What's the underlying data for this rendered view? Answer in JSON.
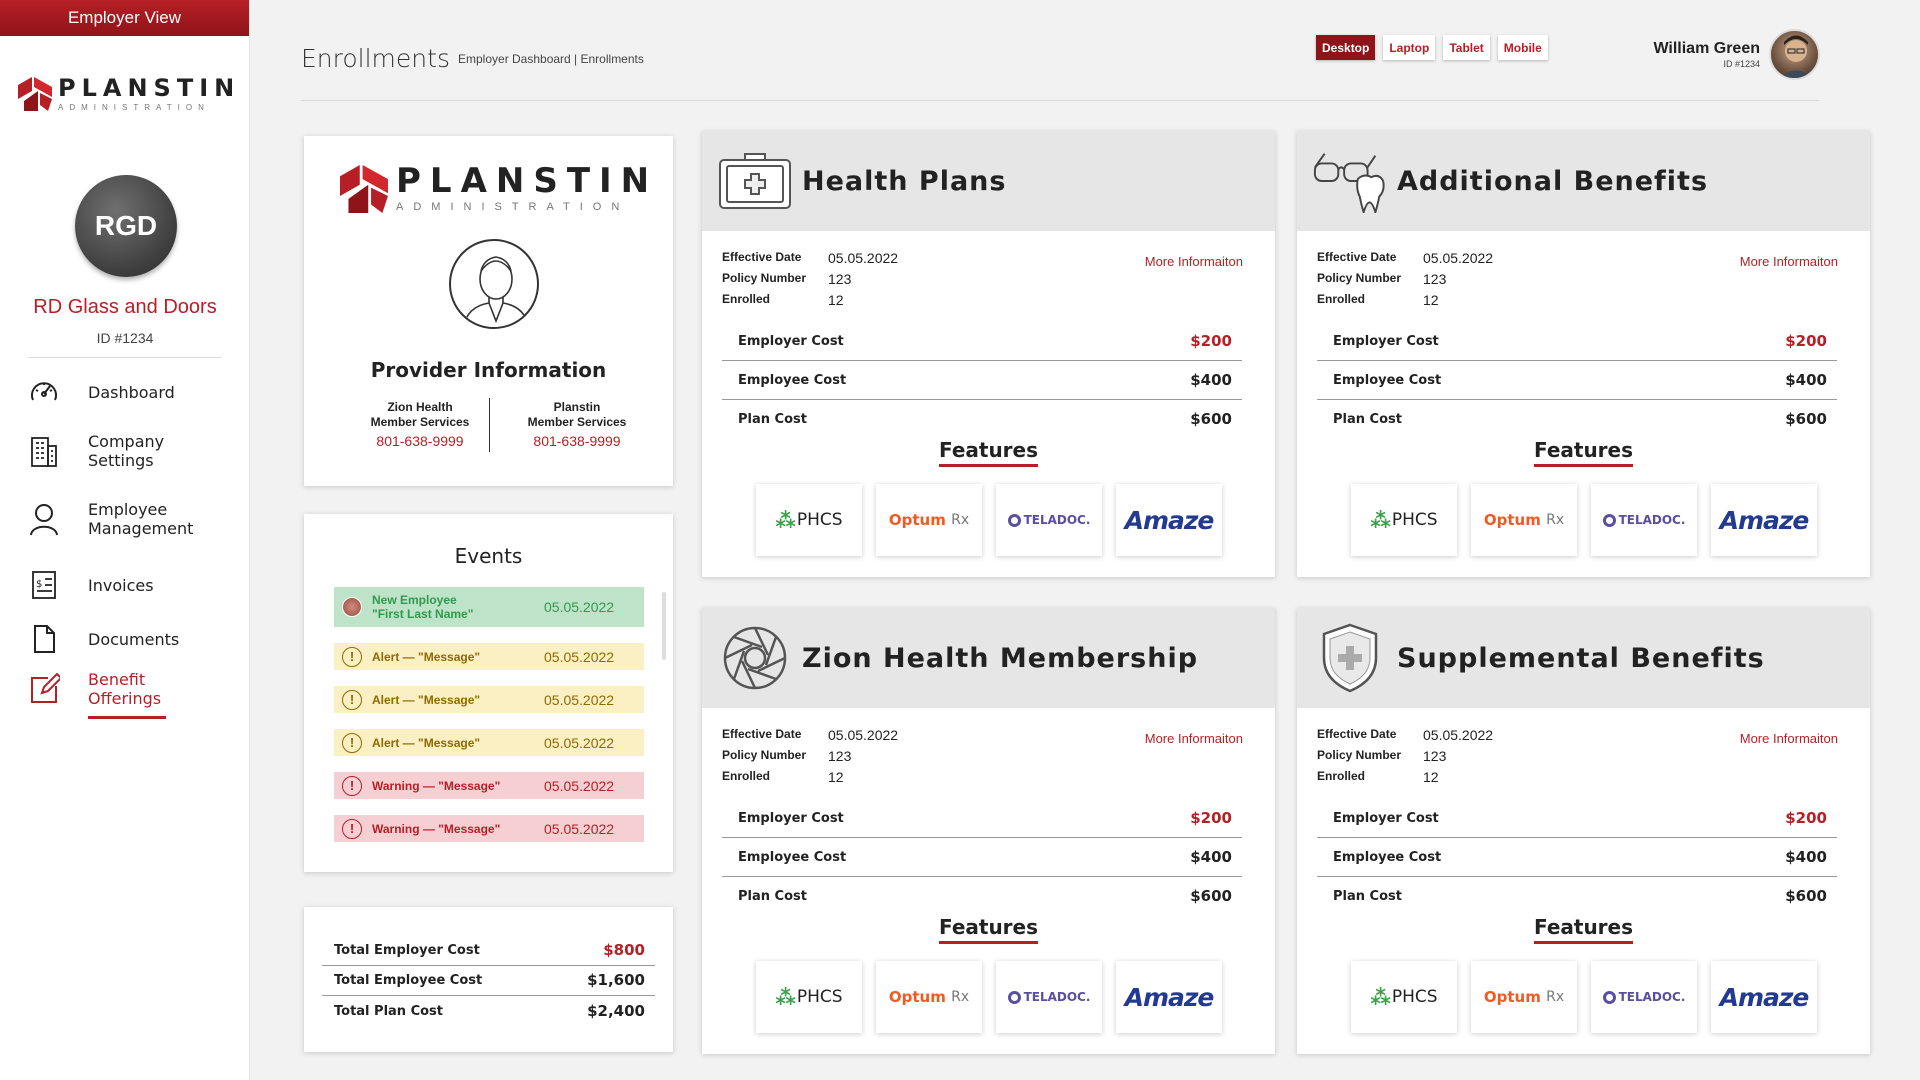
{
  "sidebar": {
    "banner": "Employer View",
    "logo_name": "PLANSTIN",
    "logo_sub": "ADMINISTRATION",
    "avatar_initials": "RGD",
    "company_name": "RD Glass and Doors",
    "company_id": "ID #1234",
    "nav": [
      {
        "label": "Dashboard",
        "icon": "speedometer-icon"
      },
      {
        "label": "Company\nSettings",
        "icon": "building-icon"
      },
      {
        "label": "Employee\nManagement",
        "icon": "user-icon"
      },
      {
        "label": "Invoices",
        "icon": "invoice-icon"
      },
      {
        "label": "Documents",
        "icon": "document-icon"
      },
      {
        "label": "Benefit\nOfferings",
        "icon": "edit-icon",
        "active": true
      }
    ]
  },
  "header": {
    "title": "Enrollments",
    "breadcrumb": "Employer  Dashboard | Enrollments",
    "devices": [
      "Desktop",
      "Laptop",
      "Tablet",
      "Mobile"
    ],
    "active_device": "Desktop",
    "user_name": "William Green",
    "user_id": "ID #1234"
  },
  "provider": {
    "logo_name": "PLANSTIN",
    "logo_sub": "ADMINISTRATION",
    "title": "Provider Information",
    "contacts": [
      {
        "line1": "Zion Health",
        "line2": "Member Services",
        "phone": "801-638-9999"
      },
      {
        "line1": "Planstin",
        "line2": "Member Services",
        "phone": "801-638-9999"
      }
    ]
  },
  "events": {
    "title": "Events",
    "items": [
      {
        "type": "new",
        "line1": "New Employee",
        "line2": "\"First Last Name\"",
        "date": "05.05.2022"
      },
      {
        "type": "alert",
        "text": "Alert — \"Message\"",
        "date": "05.05.2022"
      },
      {
        "type": "alert",
        "text": "Alert — \"Message\"",
        "date": "05.05.2022"
      },
      {
        "type": "alert",
        "text": "Alert — \"Message\"",
        "date": "05.05.2022"
      },
      {
        "type": "warning",
        "text": "Warning — \"Message\"",
        "date": "05.05.2022"
      },
      {
        "type": "warning",
        "text": "Warning — \"Message\"",
        "date": "05.05.2022"
      }
    ]
  },
  "totals": [
    {
      "label": "Total Employer Cost",
      "value": "$800",
      "highlight": true
    },
    {
      "label": "Total Employee Cost",
      "value": "$1,600"
    },
    {
      "label": "Total Plan Cost",
      "value": "$2,400"
    }
  ],
  "plans": [
    {
      "title": "Health Plans",
      "icon": "first-aid-kit-icon",
      "effective_label": "Effective Date",
      "effective": "05.05.2022",
      "policy_label": "Policy Number",
      "policy": "123",
      "enrolled_label": "Enrolled",
      "enrolled": "12",
      "more": "More Informaiton",
      "costs": [
        {
          "label": "Employer Cost",
          "value": "$200",
          "highlight": true
        },
        {
          "label": "Employee Cost",
          "value": "$400"
        },
        {
          "label": "Plan Cost",
          "value": "$600"
        }
      ],
      "features_title": "Features"
    },
    {
      "title": "Additional Benefits",
      "icon": "glasses-tooth-icon",
      "effective_label": "Effective Date",
      "effective": "05.05.2022",
      "policy_label": "Policy Number",
      "policy": "123",
      "enrolled_label": "Enrolled",
      "enrolled": "12",
      "more": "More Informaiton",
      "costs": [
        {
          "label": "Employer Cost",
          "value": "$200",
          "highlight": true
        },
        {
          "label": "Employee Cost",
          "value": "$400"
        },
        {
          "label": "Plan Cost",
          "value": "$600"
        }
      ],
      "features_title": "Features"
    },
    {
      "title": "Zion Health Membership",
      "icon": "zion-aperture-icon",
      "effective_label": "Effective Date",
      "effective": "05.05.2022",
      "policy_label": "Policy Number",
      "policy": "123",
      "enrolled_label": "Enrolled",
      "enrolled": "12",
      "more": "More Informaiton",
      "costs": [
        {
          "label": "Employer Cost",
          "value": "$200",
          "highlight": true
        },
        {
          "label": "Employee Cost",
          "value": "$400"
        },
        {
          "label": "Plan Cost",
          "value": "$600"
        }
      ],
      "features_title": "Features"
    },
    {
      "title": "Supplemental Benefits",
      "icon": "shield-cross-icon",
      "effective_label": "Effective Date",
      "effective": "05.05.2022",
      "policy_label": "Policy Number",
      "policy": "123",
      "enrolled_label": "Enrolled",
      "enrolled": "12",
      "more": "More Informaiton",
      "costs": [
        {
          "label": "Employer Cost",
          "value": "$200",
          "highlight": true
        },
        {
          "label": "Employee Cost",
          "value": "$400"
        },
        {
          "label": "Plan Cost",
          "value": "$600"
        }
      ],
      "features_title": "Features"
    }
  ],
  "features": [
    {
      "name": "PHCS",
      "logo": "phcs-logo"
    },
    {
      "name": "Optum",
      "suffix": "Rx",
      "logo": "optumrx-logo"
    },
    {
      "name": "TELADOC.",
      "logo": "teladoc-logo"
    },
    {
      "name": "Amaze",
      "logo": "amaze-logo"
    }
  ],
  "colors": {
    "brand_red": "#b61f26",
    "dark_red": "#8f1419",
    "panel_gray": "#e6e6e6"
  }
}
